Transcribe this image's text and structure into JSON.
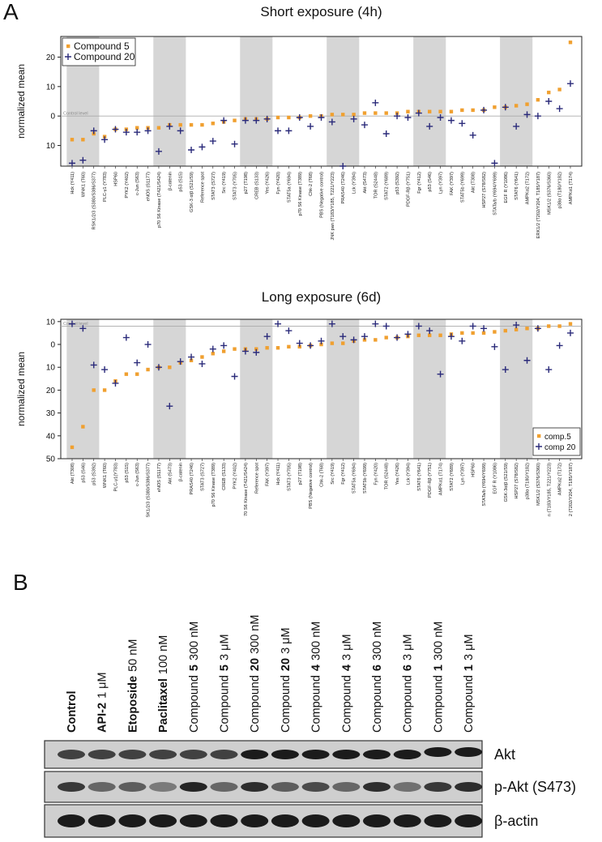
{
  "panels": [
    "A",
    "B"
  ],
  "chart_data": [
    {
      "type": "scatter",
      "title": "Short exposure (4h)",
      "ylabel": "normalized mean",
      "hline": 0,
      "hline_label": "Control level",
      "legend": "upper left",
      "ylim": [
        -17,
        27
      ],
      "yticks": [
        {
          "value": -10,
          "label": "10"
        },
        0,
        10,
        20
      ],
      "categories": [
        "Hck (Y411)",
        "WNK1 (T60)",
        "RSK1/2/3 (S380/S386/S377)",
        "PLC-γ1 (Y783)",
        "HSP60",
        "PYK2 (Y402)",
        "c-Jun (S63)",
        "eNOS (S1177)",
        "p70 S6 Kinase (T421/S424)",
        "β-catenin",
        "p53 (S15)",
        "GSK-3 α/β (S21/S9)",
        "Reference spot",
        "STAT3 (S727)",
        "Src (Y419)",
        "STAT3 (Y705)",
        "p27 (T198)",
        "CREB (S133)",
        "Yes (Y426)",
        "Fyn (Y420)",
        "STAT5a (Y694)",
        "p70 S6 Kinase (T389)",
        "Chk-2 (T68)",
        "PBS (Negative control)",
        "JNK pan (T183/Y185, T221/Y223)",
        "PRAS40 (T246)",
        "Lck (Y394)",
        "Akt (S473)",
        "TOR (S2448)",
        "STAT2 (Y689)",
        "p53 (S392)",
        "PDGF-Rβ (Y751)",
        "Fgr (Y412)",
        "p53 (S46)",
        "Lyn (Y397)",
        "FAK (Y397)",
        "STAT5b (Y699)",
        "Akt (T308)",
        "HSP27 (S78/S82)",
        "STATa/b (Y694/Y699)",
        "EGF R (Y1086)",
        "STAT6 (Y641)",
        "AMPKα2 (T172)",
        "ERK1/2 (T202/Y204, T185/Y187)",
        "MSK1/2 (S376/S360)",
        "p38α (T180/Y182)",
        "AMPKα1 (T174)"
      ],
      "series": [
        {
          "name": "Compound 5",
          "color": "#f0a030",
          "marker": "square",
          "values": [
            -8,
            -8,
            -6,
            -7,
            -4.5,
            -4.5,
            -4,
            -4,
            -4,
            -3,
            -3,
            -3,
            -3,
            -2.5,
            -2,
            -1.5,
            -1,
            -1,
            -1,
            -0.5,
            -0.5,
            -0.5,
            0,
            0,
            0.5,
            0.5,
            0.5,
            1,
            1,
            1,
            1,
            1.5,
            1.5,
            1.5,
            1.5,
            1.5,
            2,
            2,
            2,
            3,
            3,
            3.5,
            4,
            5.5,
            8,
            9,
            25
          ]
        },
        {
          "name": "Compound 20",
          "color": "#2a2a7a",
          "marker": "plus",
          "values": [
            -16,
            -15,
            -5,
            -8,
            -4.5,
            -5.5,
            -5.5,
            -5,
            -12,
            -3.5,
            -5,
            -11.5,
            -10.5,
            -8.5,
            -1.5,
            -9.5,
            -1.5,
            -1.5,
            -1,
            -5,
            -5,
            -0.5,
            -3.5,
            -0.5,
            -2,
            -17,
            -1,
            -3,
            4.5,
            -6,
            0,
            -0.5,
            1,
            -3.5,
            -0.5,
            -1.5,
            -2.5,
            -6.5,
            2,
            -16,
            3,
            -3.5,
            0.5,
            0,
            5,
            2.5,
            11
          ]
        }
      ]
    },
    {
      "type": "scatter",
      "title": "Long exposure (6d)",
      "ylabel": "normalized mean",
      "hline": 8,
      "hline_label": "Control level",
      "legend": "lower right",
      "ylim": [
        -50,
        11
      ],
      "yticks": [
        {
          "value": -50,
          "label": "50"
        },
        {
          "value": -40,
          "label": "40"
        },
        {
          "value": -30,
          "label": "30"
        },
        {
          "value": -20,
          "label": "20"
        },
        {
          "value": -10,
          "label": "10"
        },
        0,
        10
      ],
      "categories": [
        "Akt (T308)",
        "p53 (S46)",
        "p53 (S392)",
        "WNK1 (T60)",
        "PLC-γ1(Y783)",
        "p53 (S15)",
        "c-Jun (S63)",
        "SK1/2/3 (S380/S386/S377)",
        "eNOS (S1177)",
        "Akt (S473)",
        "β-catenin",
        "PRAS40 (T246)",
        "STAT3 (S727)",
        "p70 S6 Kinase (T389)",
        "CREB (S133)",
        "PYK2 (Y402)",
        "70 S6 Kinase (T421/S424)",
        "Reference spot",
        "FAK (Y397)",
        "Hck (Y411)",
        "STAT3 (Y705)",
        "p27 (T198)",
        "PBS (Negative control)",
        "Chk-2 (T68)",
        "Src (Y419)",
        "Fgr (Y412)",
        "STAT5a (Y694)",
        "STAT5b (Y699)",
        "Fyn (Y420)",
        "TOR (S2448)",
        "Yes (Y426)",
        "Lck (Y394)",
        "STAT6 (Y641)",
        "PDGF-Rβ (Y751)",
        "AMPKα1 (T174)",
        "STAT2 (Y689)",
        "Lyn (Y397)",
        "HSP60",
        "STATa/b (Y694/Y699)",
        "EGF R (Y1086)",
        "GSK-3α/β (S21/S9)",
        "HSP27 (S78/S82)",
        "p38α (T180/Y182)",
        "MSK1/2 (S376/S360)",
        "n (T183/Y185, T221/Y223)",
        "AMPKα2 (T172)",
        "2 (T202/Y204, T185/Y187)"
      ],
      "series": [
        {
          "name": "comp.5",
          "color": "#f0a030",
          "marker": "square",
          "values": [
            -45,
            -36,
            -20,
            -20,
            -16,
            -13,
            -13,
            -11,
            -10,
            -10,
            -8,
            -7,
            -5.5,
            -4,
            -3,
            -2,
            -2,
            -2,
            -1.5,
            -1.5,
            -1,
            -1,
            -0.5,
            0,
            0.5,
            0.5,
            1.5,
            2,
            2,
            3,
            3,
            3.5,
            4,
            4,
            4,
            4.5,
            5,
            5,
            5,
            5.5,
            6,
            6.5,
            7,
            7,
            8,
            8,
            9
          ]
        },
        {
          "name": "comp 20",
          "color": "#2a2a7a",
          "marker": "plus",
          "values": [
            9,
            7,
            -9,
            -11,
            -17,
            3,
            -8,
            0,
            -10,
            -27,
            -7.5,
            -5.5,
            -8.5,
            -2,
            -0.5,
            -14,
            -3,
            -3.5,
            3.5,
            9,
            6,
            0.5,
            -0.5,
            1.5,
            9,
            3.5,
            2,
            3.5,
            9,
            8,
            3,
            4.5,
            8,
            6,
            -13,
            3.5,
            1.5,
            8,
            7,
            -1,
            -11,
            8.5,
            -7,
            7,
            -11,
            -0.5,
            5
          ]
        }
      ]
    }
  ],
  "blot": {
    "lanes": [
      [
        "Control"
      ],
      [
        "API-2",
        "1 μM"
      ],
      [
        "Etoposide",
        "50 nM"
      ],
      [
        "Paclitaxel",
        "100 nM"
      ],
      [
        "Compound",
        "5",
        "300 nM"
      ],
      [
        "Compound",
        "5",
        "3 μM"
      ],
      [
        "Compound",
        "20",
        "300 nM"
      ],
      [
        "Compound",
        "20",
        "3 μM"
      ],
      [
        "Compound",
        "4",
        "300 nM"
      ],
      [
        "Compound",
        "4",
        "3 μM"
      ],
      [
        "Compound",
        "6",
        "300 nM"
      ],
      [
        "Compound",
        "6",
        "3 μM"
      ],
      [
        "Compound",
        "1",
        "300 nM"
      ],
      [
        "Compound",
        "1",
        "3 μM"
      ]
    ],
    "rows": [
      "Akt",
      "p-Akt (S473)",
      "β-actin"
    ]
  }
}
